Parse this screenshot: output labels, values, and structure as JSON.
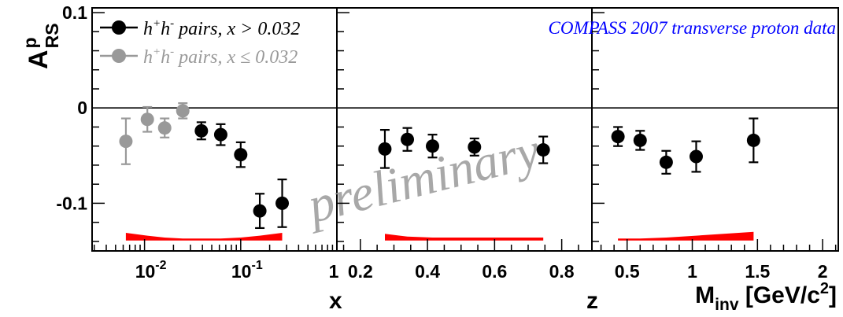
{
  "chart_data": {
    "type": "scatter",
    "y_axis": {
      "label_main": "A",
      "label_sup": "p",
      "label_sub": "RS",
      "ylim": [
        -0.15,
        0.105
      ],
      "major_ticks": [
        0.1,
        0,
        -0.1
      ],
      "major_tick_labels": [
        "0.1",
        "0",
        "-0.1"
      ],
      "minor_step": 0.02,
      "zero_line": true
    },
    "panels": [
      {
        "id": "x",
        "xlabel": "x",
        "scale": "log",
        "xlim": [
          0.00285,
          1.0
        ],
        "major_ticks": [
          0.01,
          0.1,
          1
        ],
        "major_tick_labels": [
          {
            "base": "10",
            "exp": "-2"
          },
          {
            "base": "10",
            "exp": "-1"
          },
          {
            "base": "1",
            "exp": ""
          }
        ],
        "series": [
          {
            "color": "#000000",
            "points": [
              {
                "x": 0.039,
                "y": -0.024,
                "err": 0.009
              },
              {
                "x": 0.062,
                "y": -0.028,
                "err": 0.011
              },
              {
                "x": 0.1,
                "y": -0.049,
                "err": 0.013
              },
              {
                "x": 0.158,
                "y": -0.108,
                "err": 0.018
              },
              {
                "x": 0.27,
                "y": -0.1,
                "err": 0.025
              }
            ]
          },
          {
            "color": "#999999",
            "points": [
              {
                "x": 0.0064,
                "y": -0.035,
                "err": 0.024
              },
              {
                "x": 0.0107,
                "y": -0.012,
                "err": 0.013
              },
              {
                "x": 0.0162,
                "y": -0.021,
                "err": 0.01
              },
              {
                "x": 0.025,
                "y": -0.003,
                "err": 0.008
              }
            ]
          }
        ],
        "systematic_band": {
          "color": "#ff0000",
          "x": [
            0.0064,
            0.0107,
            0.0162,
            0.025,
            0.039,
            0.062,
            0.1,
            0.158,
            0.27
          ],
          "bottom": [
            -0.139,
            -0.139,
            -0.139,
            -0.139,
            -0.139,
            -0.139,
            -0.139,
            -0.139,
            -0.139
          ],
          "top": [
            -0.131,
            -0.134,
            -0.136,
            -0.137,
            -0.137,
            -0.137,
            -0.136,
            -0.134,
            -0.131
          ]
        }
      },
      {
        "id": "z",
        "xlabel": "z",
        "scale": "linear",
        "xlim": [
          0.13,
          0.89
        ],
        "major_ticks": [
          0.2,
          0.4,
          0.6,
          0.8
        ],
        "major_tick_labels": [
          "0.2",
          "0.4",
          "0.6",
          "0.8"
        ],
        "minor_step": 0.05,
        "series": [
          {
            "color": "#000000",
            "points": [
              {
                "x": 0.273,
                "y": -0.043,
                "err": 0.02
              },
              {
                "x": 0.34,
                "y": -0.033,
                "err": 0.012
              },
              {
                "x": 0.415,
                "y": -0.04,
                "err": 0.012
              },
              {
                "x": 0.54,
                "y": -0.041,
                "err": 0.009
              },
              {
                "x": 0.745,
                "y": -0.044,
                "err": 0.014
              }
            ]
          }
        ],
        "systematic_band": {
          "color": "#ff0000",
          "x": [
            0.273,
            0.34,
            0.415,
            0.54,
            0.745
          ],
          "bottom": [
            -0.139,
            -0.139,
            -0.139,
            -0.139,
            -0.139
          ],
          "top": [
            -0.132,
            -0.135,
            -0.136,
            -0.136,
            -0.136
          ]
        }
      },
      {
        "id": "minv",
        "xlabel_main": "M",
        "xlabel_sub": "inv",
        "xlabel_unit": " [GeV/c",
        "xlabel_sup": "2",
        "xlabel_close": "]",
        "scale": "linear",
        "xlim": [
          0.23,
          2.12
        ],
        "major_ticks": [
          0.5,
          1,
          1.5,
          2
        ],
        "major_tick_labels": [
          "0.5",
          "1",
          "1.5",
          "2"
        ],
        "minor_step": 0.1,
        "series": [
          {
            "color": "#000000",
            "points": [
              {
                "x": 0.43,
                "y": -0.03,
                "err": 0.01
              },
              {
                "x": 0.6,
                "y": -0.034,
                "err": 0.01
              },
              {
                "x": 0.8,
                "y": -0.057,
                "err": 0.012
              },
              {
                "x": 1.03,
                "y": -0.051,
                "err": 0.016
              },
              {
                "x": 1.47,
                "y": -0.034,
                "err": 0.023
              }
            ]
          }
        ],
        "systematic_band": {
          "color": "#ff0000",
          "x": [
            0.43,
            0.6,
            0.8,
            1.03,
            1.47
          ],
          "bottom": [
            -0.139,
            -0.139,
            -0.139,
            -0.139,
            -0.139
          ],
          "top": [
            -0.137,
            -0.137,
            -0.136,
            -0.134,
            -0.13
          ]
        }
      }
    ],
    "legend": {
      "placement": "top-left",
      "entries": [
        {
          "prefix": "h",
          "sup1": "+",
          "mid": "h",
          "sup2": "-",
          "text": " pairs, x > 0.032",
          "color": "#000000"
        },
        {
          "prefix": "h",
          "sup1": "+",
          "mid": "h",
          "sup2": "-",
          "text": " pairs, x ≤ 0.032",
          "color": "#999999"
        }
      ]
    },
    "annotation": {
      "text": "COMPASS 2007 transverse proton data",
      "color": "#0000ff"
    },
    "watermark": {
      "text": "preliminary",
      "color": "#999999"
    }
  }
}
